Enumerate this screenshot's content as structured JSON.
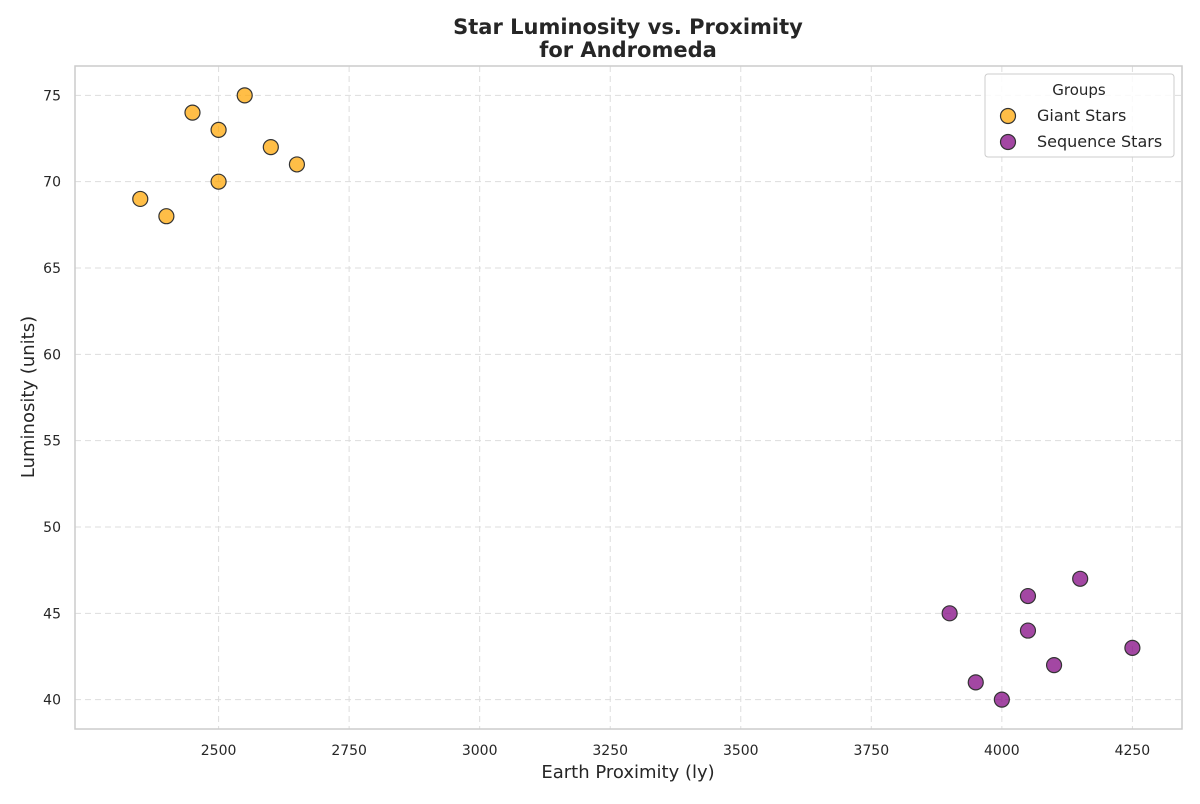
{
  "chart_data": {
    "type": "scatter",
    "title_line1": "Star Luminosity vs. Proximity",
    "title_line2": "for Andromeda",
    "xlabel": "Earth Proximity (ly)",
    "ylabel": "Luminosity (units)",
    "xlim": [
      2225,
      4345
    ],
    "ylim": [
      38.3,
      76.7
    ],
    "xticks": [
      2500,
      2750,
      3000,
      3250,
      3500,
      3750,
      4000,
      4250
    ],
    "yticks": [
      40,
      45,
      50,
      55,
      60,
      65,
      70,
      75
    ],
    "grid": true,
    "legend": {
      "title": "Groups",
      "placement": "top-right"
    },
    "series": [
      {
        "name": "Giant Stars",
        "color": "#FFA500",
        "points": [
          {
            "x": 2350,
            "y": 69
          },
          {
            "x": 2400,
            "y": 68
          },
          {
            "x": 2450,
            "y": 74
          },
          {
            "x": 2500,
            "y": 73
          },
          {
            "x": 2500,
            "y": 70
          },
          {
            "x": 2550,
            "y": 75
          },
          {
            "x": 2600,
            "y": 72
          },
          {
            "x": 2650,
            "y": 71
          }
        ]
      },
      {
        "name": "Sequence Stars",
        "color": "#800080",
        "points": [
          {
            "x": 3900,
            "y": 45
          },
          {
            "x": 3950,
            "y": 41
          },
          {
            "x": 4000,
            "y": 40
          },
          {
            "x": 4050,
            "y": 46
          },
          {
            "x": 4050,
            "y": 44
          },
          {
            "x": 4100,
            "y": 42
          },
          {
            "x": 4150,
            "y": 47
          },
          {
            "x": 4250,
            "y": 43
          }
        ]
      }
    ]
  }
}
